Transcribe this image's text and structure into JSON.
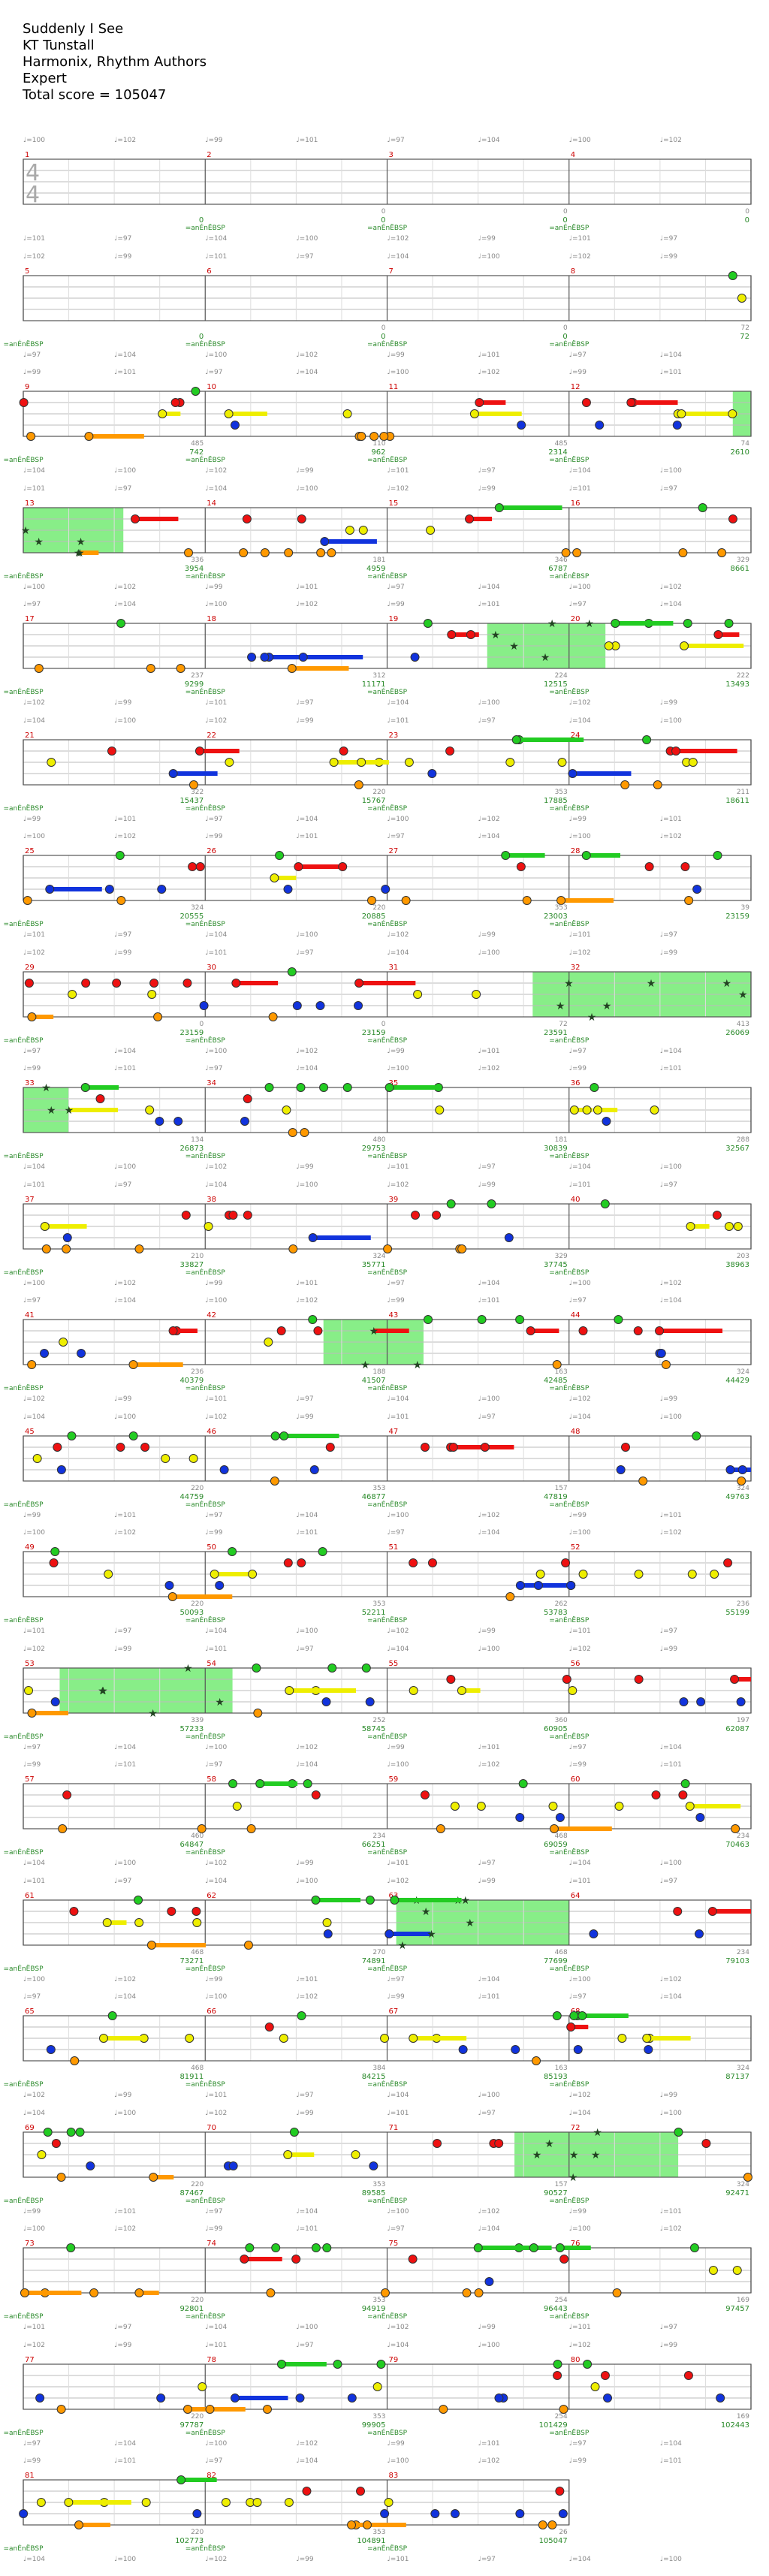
{
  "header": {
    "title": "Suddenly I See",
    "artist": "KT Tunstall",
    "charter": "Harmonix, Rhythm Authors",
    "difficulty": "Expert",
    "total_score": "Total score = 105047"
  },
  "time_signature": {
    "num": "4",
    "den": "4"
  },
  "tempo_labels": [
    "♩=100",
    "♩=102",
    "♩=99",
    "♩=101",
    "♩=97",
    "♩=104"
  ],
  "marker_text": "=anÉnËBSP",
  "colors": {
    "green": "#22cc22",
    "red": "#ee1111",
    "yellow": "#eeee00",
    "blue": "#1133dd",
    "orange": "#ff9900",
    "star_region": "#88ee88",
    "star_note": "#224422",
    "measure_number": "#cc0000",
    "score": "#2a8a2a"
  },
  "rows": [
    {
      "measures": [
        1,
        2,
        3,
        4
      ],
      "scores": [
        "0",
        "0",
        "0",
        "0"
      ],
      "sub": [
        "",
        "0",
        "0",
        "0"
      ]
    },
    {
      "measures": [
        5,
        6,
        7,
        8
      ],
      "scores": [
        "0",
        "0",
        "0",
        "72"
      ],
      "sub": [
        "",
        "0",
        "0",
        "72"
      ]
    },
    {
      "measures": [
        9,
        10,
        11,
        12
      ],
      "scores": [
        "742",
        "962",
        "2314",
        "2610"
      ],
      "sub": [
        "485",
        "110",
        "485",
        "74"
      ]
    },
    {
      "measures": [
        13,
        14,
        15,
        16
      ],
      "scores": [
        "3954",
        "4959",
        "6787",
        "8661"
      ],
      "sub": [
        "336",
        "181",
        "346",
        "329"
      ]
    },
    {
      "measures": [
        17,
        18,
        19,
        20
      ],
      "scores": [
        "9299",
        "11171",
        "12515",
        "13493"
      ],
      "sub": [
        "237",
        "312",
        "224",
        "222"
      ]
    },
    {
      "measures": [
        21,
        22,
        23,
        24
      ],
      "scores": [
        "15437",
        "15767",
        "17885",
        "18611"
      ],
      "sub": [
        "322",
        "220",
        "353",
        "211"
      ]
    },
    {
      "measures": [
        25,
        26,
        27,
        28
      ],
      "scores": [
        "20555",
        "20885",
        "23003",
        "23159"
      ],
      "sub": [
        "324",
        "220",
        "353",
        "39"
      ]
    },
    {
      "measures": [
        29,
        30,
        31,
        32
      ],
      "scores": [
        "23159",
        "23159",
        "23591",
        "26069"
      ],
      "sub": [
        "0",
        "0",
        "72",
        "413"
      ]
    },
    {
      "measures": [
        33,
        34,
        35,
        36
      ],
      "scores": [
        "26873",
        "29753",
        "30839",
        "32567"
      ],
      "sub": [
        "134",
        "480",
        "181",
        "288"
      ]
    },
    {
      "measures": [
        37,
        38,
        39,
        40
      ],
      "scores": [
        "33827",
        "35771",
        "37745",
        "38963"
      ],
      "sub": [
        "210",
        "324",
        "329",
        "203"
      ]
    },
    {
      "measures": [
        41,
        42,
        43,
        44
      ],
      "scores": [
        "40379",
        "41507",
        "42485",
        "44429"
      ],
      "sub": [
        "236",
        "188",
        "163",
        "324"
      ]
    },
    {
      "measures": [
        45,
        46,
        47,
        48
      ],
      "scores": [
        "44759",
        "46877",
        "47819",
        "49763"
      ],
      "sub": [
        "220",
        "353",
        "157",
        "324"
      ]
    },
    {
      "measures": [
        49,
        50,
        51,
        52
      ],
      "scores": [
        "50093",
        "52211",
        "53783",
        "55199"
      ],
      "sub": [
        "220",
        "353",
        "262",
        "236"
      ]
    },
    {
      "measures": [
        53,
        54,
        55,
        56
      ],
      "scores": [
        "57233",
        "58745",
        "60905",
        "62087"
      ],
      "sub": [
        "339",
        "252",
        "360",
        "197"
      ]
    },
    {
      "measures": [
        57,
        58,
        59,
        60
      ],
      "scores": [
        "64847",
        "66251",
        "69059",
        "70463"
      ],
      "sub": [
        "460",
        "234",
        "468",
        "234"
      ]
    },
    {
      "measures": [
        61,
        62,
        63,
        64
      ],
      "scores": [
        "73271",
        "74891",
        "77699",
        "79103"
      ],
      "sub": [
        "468",
        "270",
        "468",
        "234"
      ]
    },
    {
      "measures": [
        65,
        66,
        67,
        68
      ],
      "scores": [
        "81911",
        "84215",
        "85193",
        "87137"
      ],
      "sub": [
        "468",
        "384",
        "163",
        "324"
      ]
    },
    {
      "measures": [
        69,
        70,
        71,
        72
      ],
      "scores": [
        "87467",
        "89585",
        "90527",
        "92471"
      ],
      "sub": [
        "220",
        "353",
        "157",
        "324"
      ]
    },
    {
      "measures": [
        73,
        74,
        75,
        76
      ],
      "scores": [
        "92801",
        "94919",
        "96443",
        "97457"
      ],
      "sub": [
        "220",
        "353",
        "254",
        "169"
      ]
    },
    {
      "measures": [
        77,
        78,
        79,
        80
      ],
      "scores": [
        "97787",
        "99905",
        "101429",
        "102443"
      ],
      "sub": [
        "220",
        "353",
        "254",
        "169"
      ]
    },
    {
      "measures": [
        81,
        82,
        83
      ],
      "scores": [
        "102773",
        "104891",
        "105047"
      ],
      "sub": [
        "220",
        "353",
        "26"
      ]
    }
  ]
}
